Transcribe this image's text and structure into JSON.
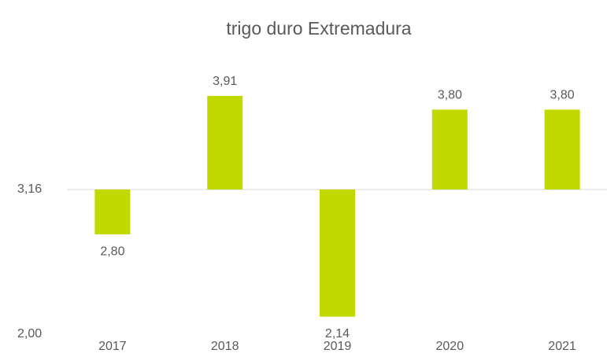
{
  "chart_data": {
    "type": "bar",
    "title": "trigo duro Extremadura",
    "categories": [
      "2017",
      "2018",
      "2019",
      "2020",
      "2021"
    ],
    "values": [
      2.8,
      3.91,
      2.14,
      3.8,
      3.8
    ],
    "value_labels": [
      "2,80",
      "3,91",
      "2,14",
      "3,80",
      "3,80"
    ],
    "color": "#c2d900",
    "bar_base": 3.16,
    "ylim": [
      2,
      4.25
    ],
    "yticks": [
      {
        "value": 2,
        "label": "2,00"
      },
      {
        "value": 3.16,
        "label": "3,16"
      }
    ],
    "grid": false
  }
}
